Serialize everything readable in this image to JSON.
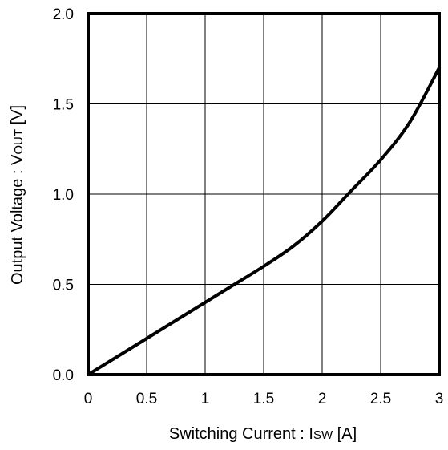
{
  "chart_data": {
    "type": "line",
    "title": "",
    "xlabel": {
      "prefix": "Switching Current : I",
      "subscript": "SW",
      "suffix": " [A]"
    },
    "ylabel": {
      "prefix": "Output Voltage : V",
      "subscript": "OUT",
      "suffix": " [V]"
    },
    "xlim": [
      0,
      3
    ],
    "ylim": [
      0,
      2
    ],
    "x_ticks": [
      0,
      0.5,
      1,
      1.5,
      2,
      2.5,
      3
    ],
    "x_tick_labels": [
      "0",
      "0.5",
      "1",
      "1.5",
      "2",
      "2.5",
      "3"
    ],
    "y_ticks": [
      0,
      0.5,
      1,
      1.5,
      2
    ],
    "y_tick_labels": [
      "0.0",
      "0.5",
      "1.0",
      "1.5",
      "2.0"
    ],
    "grid": true,
    "legend": "none",
    "series": [
      {
        "x": [
          0,
          0.25,
          0.5,
          0.75,
          1.0,
          1.25,
          1.5,
          1.75,
          2.0,
          2.25,
          2.5,
          2.75,
          3.0
        ],
        "y": [
          0,
          0.1,
          0.2,
          0.3,
          0.4,
          0.5,
          0.6,
          0.71,
          0.85,
          1.02,
          1.19,
          1.4,
          1.7
        ]
      }
    ],
    "colors": {
      "line": "#000000",
      "grid": "#000000",
      "frame": "#000000"
    }
  }
}
